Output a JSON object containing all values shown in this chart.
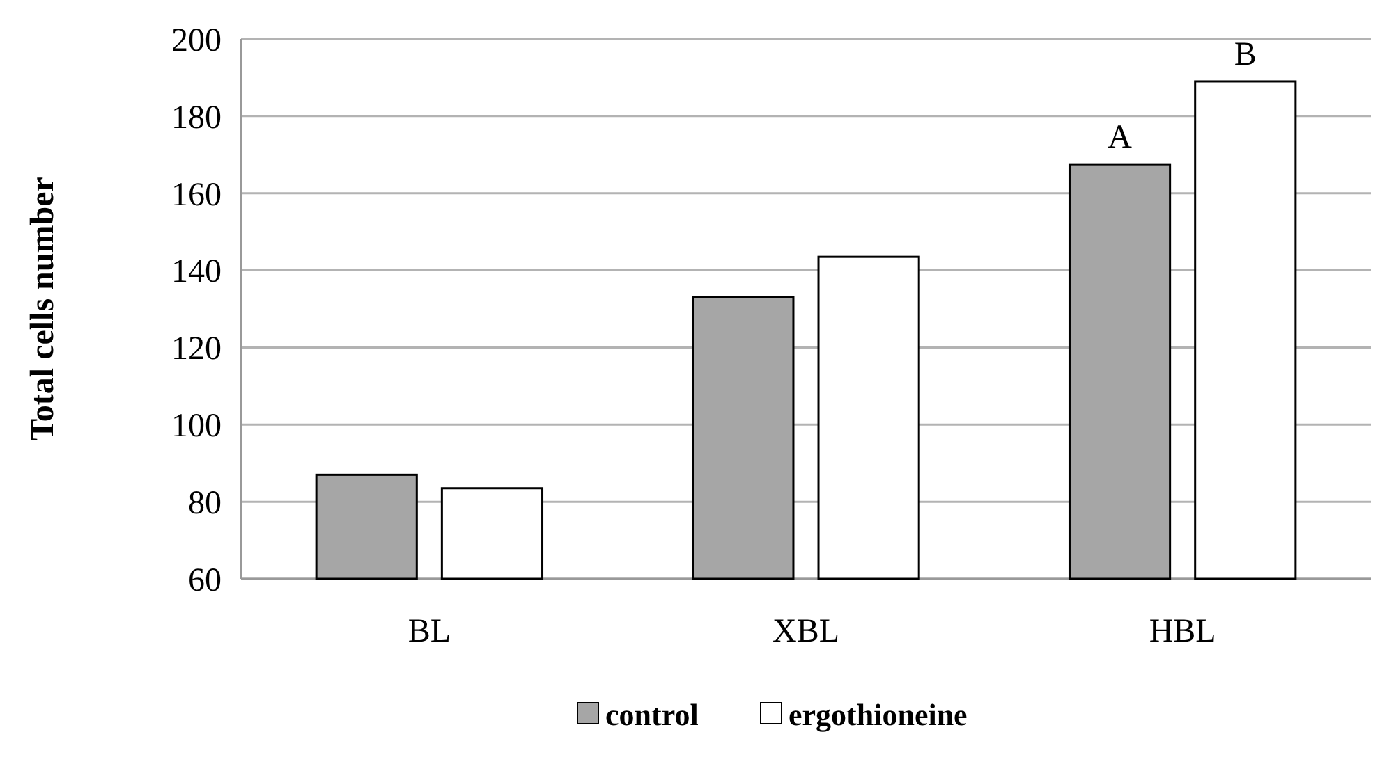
{
  "chart_data": {
    "type": "bar",
    "ylabel": "Total cells number",
    "categories": [
      "BL",
      "XBL",
      "HBL"
    ],
    "series": [
      {
        "name": "control",
        "color": "#a6a6a6",
        "values": [
          87,
          133,
          167.5
        ]
      },
      {
        "name": "ergothioneine",
        "color": "#ffffff",
        "values": [
          83.5,
          143.5,
          189
        ]
      }
    ],
    "ylim": [
      60,
      200
    ],
    "yticks": [
      60,
      80,
      100,
      120,
      140,
      160,
      180,
      200
    ],
    "grid": "y",
    "legend": "bottom",
    "annotations": [
      "A",
      "B"
    ]
  }
}
